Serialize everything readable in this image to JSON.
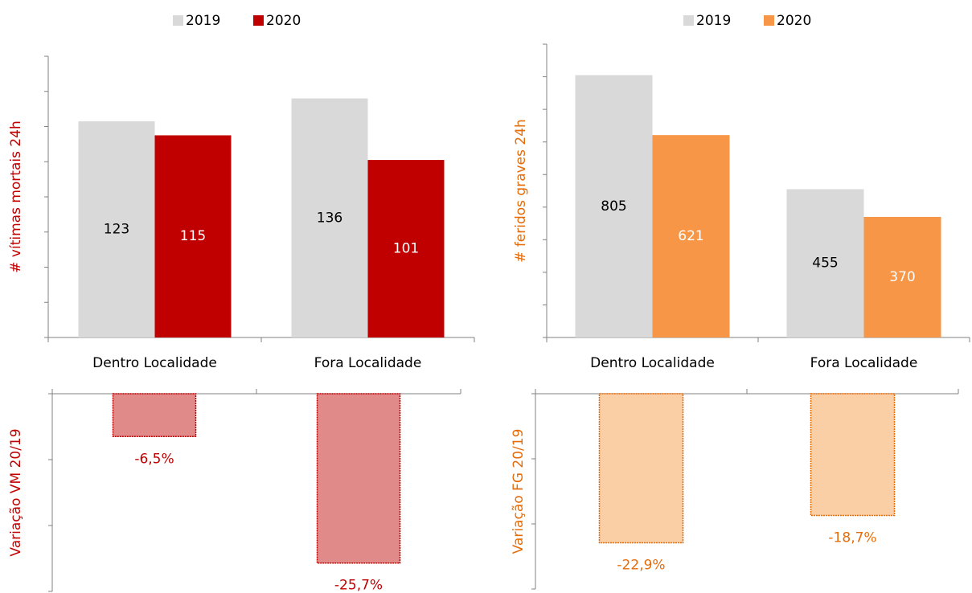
{
  "chart_data": [
    {
      "type": "bar",
      "y_label": "# vítimas mortais 24h",
      "categories": [
        "Dentro Localidade",
        "Fora Localidade"
      ],
      "series": [
        {
          "name": "2019",
          "color": "#d9d9d9",
          "values": [
            123,
            136
          ]
        },
        {
          "name": "2020",
          "color": "#c00000",
          "values": [
            115,
            101
          ]
        }
      ],
      "ylim": [
        0,
        160
      ],
      "yticks": [
        0,
        20,
        40,
        60,
        80,
        100,
        120,
        140,
        160
      ],
      "legend": "top",
      "label_color": "#c00000"
    },
    {
      "type": "bar",
      "y_label": "# feridos graves 24h",
      "categories": [
        "Dentro Localidade",
        "Fora Localidade"
      ],
      "series": [
        {
          "name": "2019",
          "color": "#d9d9d9",
          "values": [
            805,
            455
          ]
        },
        {
          "name": "2020",
          "color": "#f79646",
          "values": [
            621,
            370
          ]
        }
      ],
      "ylim": [
        0,
        900
      ],
      "yticks": [
        0,
        100,
        200,
        300,
        400,
        500,
        600,
        700,
        800,
        900
      ],
      "legend": "top",
      "label_color": "#e46c0a"
    },
    {
      "type": "bar",
      "y_label": "Variação VM 20/19",
      "categories": [
        null,
        null
      ],
      "values": [
        -6.5,
        -25.7
      ],
      "value_labels": [
        "-6,5%",
        "-25,7%"
      ],
      "color": "#e08a8a",
      "border_color": "#c00000",
      "ylim": [
        -30,
        0
      ],
      "yticks": [
        -30,
        -20,
        -10,
        0
      ],
      "label_color": "#c00000"
    },
    {
      "type": "bar",
      "y_label": "Variação FG 20/19",
      "categories": [
        null,
        null
      ],
      "values": [
        -22.9,
        -18.7
      ],
      "value_labels": [
        "-22,9%",
        "-18,7%"
      ],
      "color": "#fbcfa5",
      "border_color": "#e46c0a",
      "ylim": [
        -30,
        0
      ],
      "yticks": [
        -30,
        -20,
        -10,
        0
      ],
      "label_color": "#e46c0a"
    }
  ]
}
